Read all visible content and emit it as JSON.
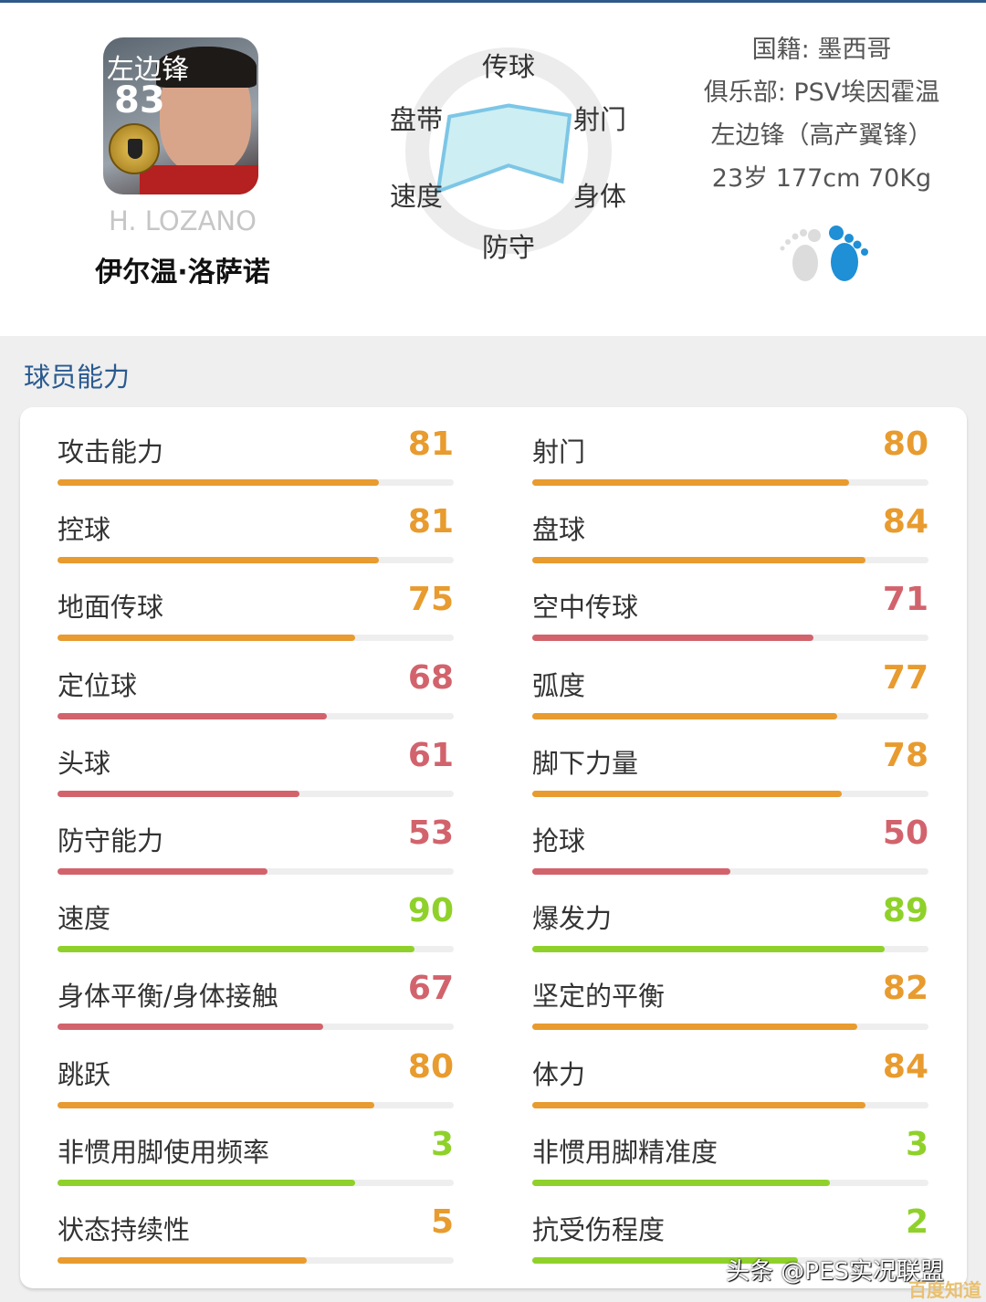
{
  "player": {
    "card_position": "左边锋",
    "overall": "83",
    "name_en": "H. LOZANO",
    "name_cn": "伊尔温·洛萨诺"
  },
  "radar": {
    "axes": [
      "传球",
      "射门",
      "身体",
      "防守",
      "速度",
      "盘带"
    ],
    "values": [
      55,
      86,
      75,
      18,
      99,
      83
    ]
  },
  "info": {
    "nationality": "国籍: 墨西哥",
    "club": "俱乐部: PSV埃因霍温",
    "position": "左边锋（高产翼锋）",
    "physical": "23岁 177cm 70Kg"
  },
  "foot": {
    "preferred": "right",
    "icon_left": "left-foot-icon",
    "icon_right": "right-foot-icon",
    "active_color": "#1f8fd6",
    "inactive_color": "#dcdcdc"
  },
  "section_title": "球员能力",
  "colors": {
    "orange": "#e89b2e",
    "red": "#d2636c",
    "green": "#8fd12a"
  },
  "stats_left": [
    {
      "label": "攻击能力",
      "value": "81",
      "fill": 0.81,
      "color": "orange"
    },
    {
      "label": "控球",
      "value": "81",
      "fill": 0.81,
      "color": "orange"
    },
    {
      "label": "地面传球",
      "value": "75",
      "fill": 0.75,
      "color": "orange"
    },
    {
      "label": "定位球",
      "value": "68",
      "fill": 0.68,
      "color": "red"
    },
    {
      "label": "头球",
      "value": "61",
      "fill": 0.61,
      "color": "red"
    },
    {
      "label": "防守能力",
      "value": "53",
      "fill": 0.53,
      "color": "red"
    },
    {
      "label": "速度",
      "value": "90",
      "fill": 0.9,
      "color": "green"
    },
    {
      "label": "身体平衡/身体接触",
      "value": "67",
      "fill": 0.67,
      "color": "red"
    },
    {
      "label": "跳跃",
      "value": "80",
      "fill": 0.8,
      "color": "orange"
    },
    {
      "label": "非惯用脚使用频率",
      "value": "3",
      "fill": 0.75,
      "color": "green"
    },
    {
      "label": "状态持续性",
      "value": "5",
      "fill": 0.63,
      "color": "orange"
    }
  ],
  "stats_right": [
    {
      "label": "射门",
      "value": "80",
      "fill": 0.8,
      "color": "orange"
    },
    {
      "label": "盘球",
      "value": "84",
      "fill": 0.84,
      "color": "orange"
    },
    {
      "label": "空中传球",
      "value": "71",
      "fill": 0.71,
      "color": "red"
    },
    {
      "label": "弧度",
      "value": "77",
      "fill": 0.77,
      "color": "orange"
    },
    {
      "label": "脚下力量",
      "value": "78",
      "fill": 0.78,
      "color": "orange"
    },
    {
      "label": "抢球",
      "value": "50",
      "fill": 0.5,
      "color": "red"
    },
    {
      "label": "爆发力",
      "value": "89",
      "fill": 0.89,
      "color": "green"
    },
    {
      "label": "坚定的平衡",
      "value": "82",
      "fill": 0.82,
      "color": "orange"
    },
    {
      "label": "体力",
      "value": "84",
      "fill": 0.84,
      "color": "orange"
    },
    {
      "label": "非惯用脚精准度",
      "value": "3",
      "fill": 0.75,
      "color": "green"
    },
    {
      "label": "抗受伤程度",
      "value": "2",
      "fill": 0.67,
      "color": "green"
    }
  ],
  "watermarks": {
    "toutiao": "头条 @PES实况联盟",
    "baidu": "百度知道"
  }
}
